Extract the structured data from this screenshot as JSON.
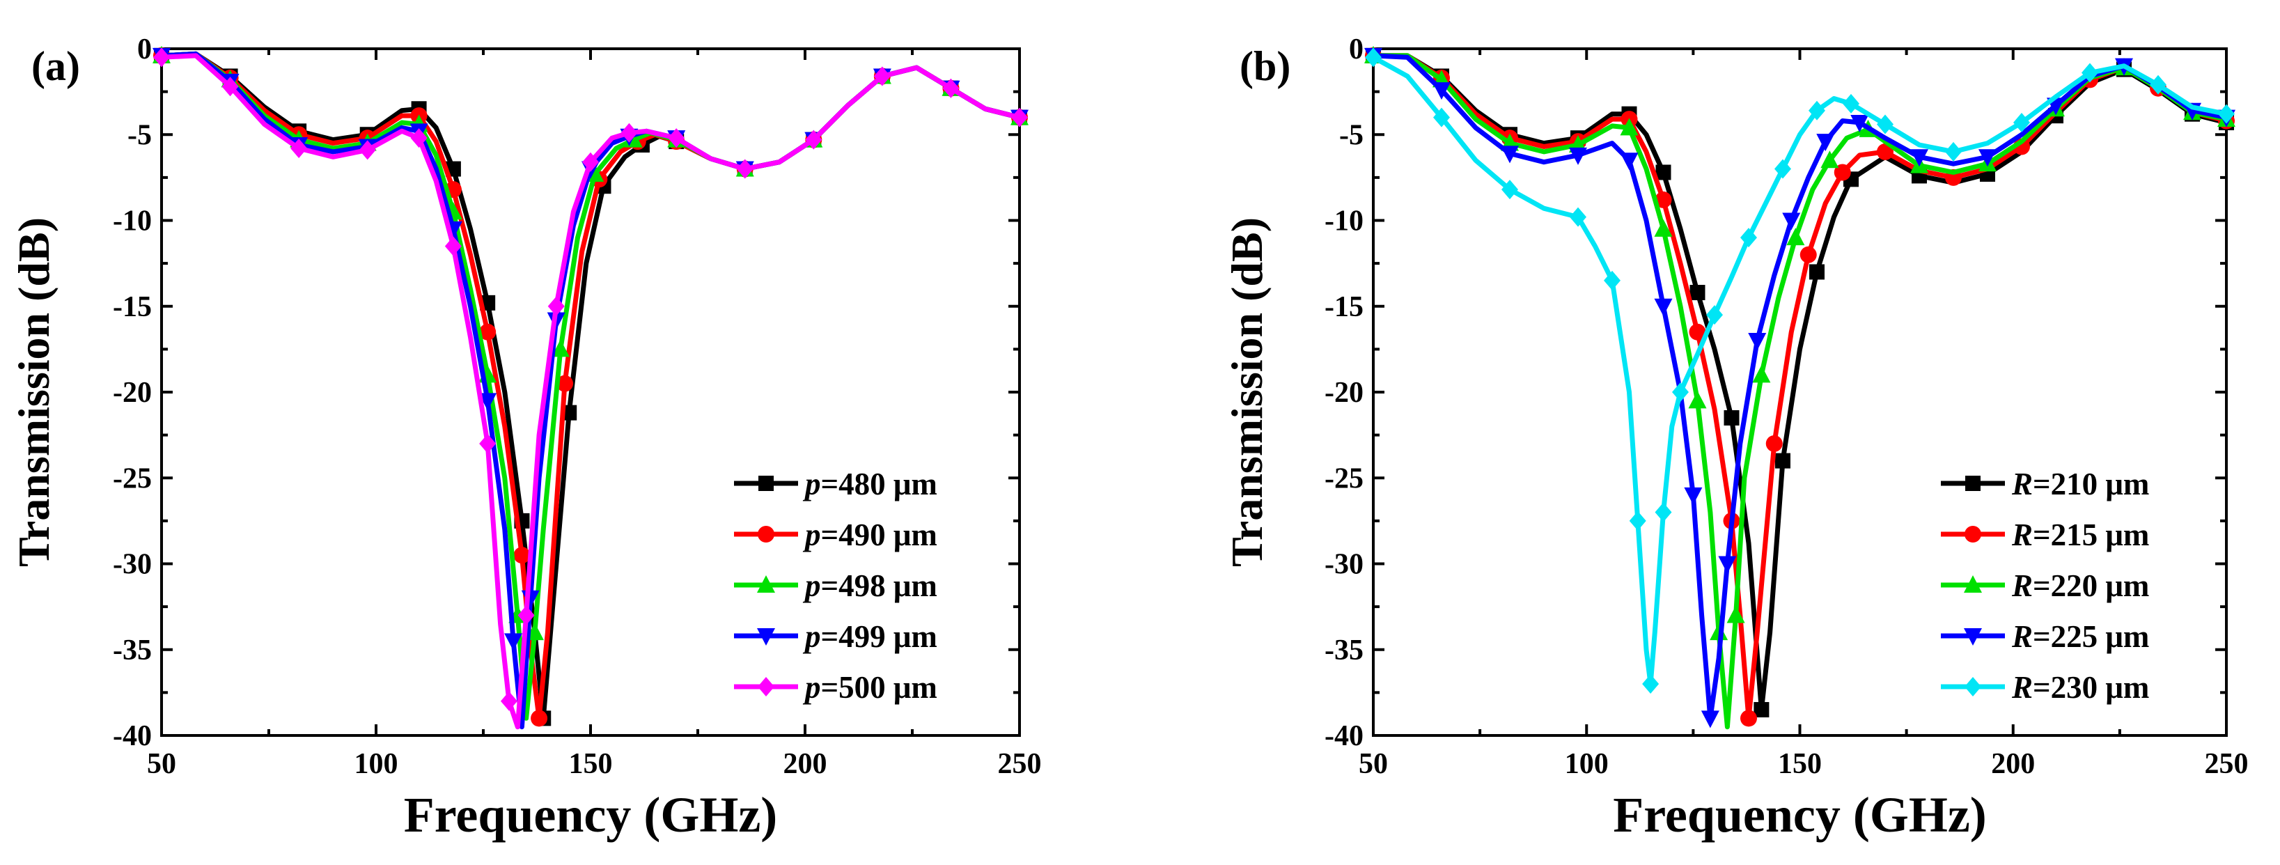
{
  "chart_data": [
    {
      "type": "line",
      "panel_label": "(a)",
      "xlabel": "Frequency (GHz)",
      "ylabel": "Transmission (dB)",
      "xlim": [
        50,
        250
      ],
      "ylim": [
        -40,
        0
      ],
      "xticks": [
        50,
        100,
        150,
        200,
        250
      ],
      "yticks": [
        0,
        -5,
        -10,
        -15,
        -20,
        -25,
        -30,
        -35,
        -40
      ],
      "grid": false,
      "legend_position": "bottom-right",
      "legend_var": "p",
      "legend_unit": "μm",
      "series": [
        {
          "name": "p=480 μm",
          "param": "480",
          "color": "#000000",
          "marker": "square",
          "x": [
            50,
            58,
            66,
            74,
            82,
            90,
            98,
            106,
            110,
            114,
            118,
            122,
            126,
            130,
            134,
            137,
            139,
            141,
            145,
            149,
            153,
            158,
            162,
            166,
            170,
            178,
            186,
            194,
            202,
            210,
            218,
            226,
            234,
            242,
            250
          ],
          "y": [
            -0.4,
            -0.3,
            -1.6,
            -3.4,
            -4.8,
            -5.3,
            -5.0,
            -3.6,
            -3.5,
            -4.6,
            -7.0,
            -10.5,
            -14.8,
            -20.0,
            -27.5,
            -34.0,
            -39.0,
            -33.0,
            -21.2,
            -12.5,
            -8.0,
            -6.3,
            -5.6,
            -5.1,
            -5.4,
            -6.4,
            -7.0,
            -6.6,
            -5.3,
            -3.3,
            -1.6,
            -1.1,
            -2.3,
            -3.5,
            -4.0
          ]
        },
        {
          "name": "p=490 μm",
          "param": "490",
          "color": "#ff0000",
          "marker": "circle",
          "x": [
            50,
            58,
            66,
            74,
            82,
            90,
            98,
            106,
            110,
            114,
            118,
            122,
            126,
            130,
            134,
            136,
            138,
            140,
            144,
            148,
            152,
            157,
            161,
            165,
            170,
            178,
            186,
            194,
            202,
            210,
            218,
            226,
            234,
            242,
            250
          ],
          "y": [
            -0.4,
            -0.3,
            -1.7,
            -3.6,
            -5.0,
            -5.5,
            -5.2,
            -3.9,
            -3.9,
            -5.4,
            -8.2,
            -12.0,
            -16.5,
            -22.0,
            -29.5,
            -35.0,
            -39.0,
            -34.0,
            -19.5,
            -11.8,
            -7.6,
            -6.0,
            -5.4,
            -5.0,
            -5.4,
            -6.4,
            -7.0,
            -6.6,
            -5.3,
            -3.3,
            -1.6,
            -1.1,
            -2.3,
            -3.5,
            -4.0
          ]
        },
        {
          "name": "p=498 μm",
          "param": "498",
          "color": "#00e000",
          "marker": "triangle-up",
          "x": [
            50,
            58,
            66,
            74,
            82,
            90,
            98,
            106,
            110,
            114,
            118,
            122,
            126,
            130,
            133,
            135,
            137,
            139,
            143,
            147,
            151,
            156,
            160,
            164,
            170,
            178,
            186,
            194,
            202,
            210,
            218,
            226,
            234,
            242,
            250
          ],
          "y": [
            -0.4,
            -0.3,
            -1.8,
            -3.9,
            -5.3,
            -5.8,
            -5.5,
            -4.3,
            -4.4,
            -6.2,
            -9.5,
            -14.0,
            -19.0,
            -25.0,
            -33.0,
            -39.0,
            -34.0,
            -28.0,
            -17.5,
            -11.0,
            -7.3,
            -5.8,
            -5.3,
            -4.9,
            -5.3,
            -6.4,
            -7.0,
            -6.6,
            -5.3,
            -3.3,
            -1.6,
            -1.1,
            -2.3,
            -3.5,
            -4.0
          ]
        },
        {
          "name": "p=499 μm",
          "param": "499",
          "color": "#0000ff",
          "marker": "triangle-down",
          "x": [
            50,
            58,
            66,
            74,
            82,
            90,
            98,
            106,
            110,
            114,
            118,
            122,
            126,
            130,
            132,
            134,
            136,
            138,
            142,
            146,
            150,
            155,
            159,
            163,
            170,
            178,
            186,
            194,
            202,
            210,
            218,
            226,
            234,
            242,
            250
          ],
          "y": [
            -0.4,
            -0.3,
            -1.9,
            -4.1,
            -5.6,
            -6.0,
            -5.7,
            -4.6,
            -4.8,
            -7.0,
            -10.5,
            -15.0,
            -20.5,
            -28.0,
            -34.5,
            -39.5,
            -32.0,
            -25.0,
            -15.8,
            -10.3,
            -7.0,
            -5.5,
            -5.1,
            -4.8,
            -5.2,
            -6.4,
            -7.0,
            -6.6,
            -5.3,
            -3.3,
            -1.6,
            -1.1,
            -2.3,
            -3.5,
            -4.0
          ]
        },
        {
          "name": "p=500 μm",
          "param": "500",
          "color": "#ff00ff",
          "marker": "diamond",
          "x": [
            50,
            58,
            66,
            74,
            82,
            90,
            98,
            106,
            110,
            114,
            118,
            122,
            126,
            129,
            131,
            133,
            135,
            138,
            142,
            146,
            150,
            155,
            159,
            163,
            170,
            178,
            186,
            194,
            202,
            210,
            218,
            226,
            234,
            242,
            250
          ],
          "y": [
            -0.5,
            -0.4,
            -2.2,
            -4.4,
            -5.8,
            -6.3,
            -5.9,
            -4.8,
            -5.2,
            -7.7,
            -11.5,
            -16.8,
            -23.0,
            -33.5,
            -38.0,
            -39.5,
            -33.0,
            -22.5,
            -15.0,
            -9.5,
            -6.6,
            -5.2,
            -4.9,
            -4.8,
            -5.2,
            -6.4,
            -7.0,
            -6.6,
            -5.3,
            -3.3,
            -1.6,
            -1.1,
            -2.3,
            -3.5,
            -4.0
          ]
        }
      ]
    },
    {
      "type": "line",
      "panel_label": "(b)",
      "xlabel": "Frequency (GHz)",
      "ylabel": "Transmission (dB)",
      "xlim": [
        50,
        250
      ],
      "ylim": [
        -40,
        0
      ],
      "xticks": [
        50,
        100,
        150,
        200,
        250
      ],
      "yticks": [
        0,
        -5,
        -10,
        -15,
        -20,
        -25,
        -30,
        -35,
        -40
      ],
      "grid": false,
      "legend_position": "bottom-right",
      "legend_var": "R",
      "legend_unit": "μm",
      "series": [
        {
          "name": "R=210 μm",
          "param": "210",
          "color": "#000000",
          "marker": "square",
          "x": [
            50,
            58,
            66,
            74,
            82,
            90,
            98,
            106,
            110,
            114,
            118,
            122,
            126,
            130,
            134,
            138,
            141,
            143,
            146,
            150,
            154,
            158,
            162,
            170,
            178,
            186,
            194,
            202,
            210,
            218,
            226,
            234,
            242,
            250
          ],
          "y": [
            -0.4,
            -0.4,
            -1.6,
            -3.6,
            -5.0,
            -5.5,
            -5.2,
            -3.8,
            -3.8,
            -5.0,
            -7.2,
            -10.5,
            -14.2,
            -17.5,
            -21.5,
            -28.8,
            -38.5,
            -34.0,
            -24.0,
            -17.5,
            -13.0,
            -9.8,
            -7.6,
            -6.3,
            -7.4,
            -7.8,
            -7.3,
            -6.0,
            -3.9,
            -2.0,
            -1.2,
            -2.4,
            -3.8,
            -4.3
          ]
        },
        {
          "name": "R=215 μm",
          "param": "215",
          "color": "#ff0000",
          "marker": "circle",
          "x": [
            50,
            58,
            66,
            74,
            82,
            90,
            98,
            106,
            110,
            114,
            118,
            122,
            126,
            130,
            134,
            136,
            138,
            140,
            144,
            148,
            152,
            156,
            160,
            164,
            170,
            178,
            186,
            194,
            202,
            210,
            218,
            226,
            234,
            242,
            250
          ],
          "y": [
            -0.4,
            -0.4,
            -1.7,
            -3.8,
            -5.2,
            -5.7,
            -5.4,
            -4.1,
            -4.1,
            -6.0,
            -8.8,
            -12.5,
            -16.5,
            -21.0,
            -27.5,
            -33.0,
            -39.0,
            -34.0,
            -23.0,
            -16.5,
            -12.0,
            -9.0,
            -7.2,
            -6.2,
            -6.0,
            -7.1,
            -7.5,
            -7.0,
            -5.7,
            -3.7,
            -1.8,
            -1.1,
            -2.3,
            -3.7,
            -4.2
          ]
        },
        {
          "name": "R=220 μm",
          "param": "220",
          "color": "#00e000",
          "marker": "triangle-up",
          "x": [
            50,
            58,
            66,
            74,
            82,
            90,
            98,
            106,
            110,
            114,
            118,
            122,
            126,
            129,
            131,
            133,
            135,
            137,
            141,
            145,
            149,
            153,
            157,
            161,
            166,
            170,
            178,
            186,
            194,
            202,
            210,
            218,
            226,
            234,
            242,
            250
          ],
          "y": [
            -0.4,
            -0.4,
            -1.8,
            -4.1,
            -5.5,
            -6.0,
            -5.6,
            -4.5,
            -4.6,
            -7.0,
            -10.5,
            -15.0,
            -20.5,
            -27.0,
            -34.0,
            -39.5,
            -33.0,
            -25.0,
            -19.0,
            -14.5,
            -11.0,
            -8.2,
            -6.5,
            -5.2,
            -4.7,
            -5.4,
            -6.8,
            -7.2,
            -6.7,
            -5.4,
            -3.5,
            -1.7,
            -1.1,
            -2.3,
            -3.7,
            -4.1
          ]
        },
        {
          "name": "R=225 μm",
          "param": "225",
          "color": "#0000ff",
          "marker": "triangle-down",
          "x": [
            50,
            58,
            66,
            74,
            82,
            90,
            98,
            106,
            110,
            114,
            118,
            122,
            125,
            127,
            129,
            131,
            133,
            136,
            140,
            144,
            148,
            152,
            156,
            160,
            164,
            170,
            178,
            186,
            194,
            202,
            210,
            218,
            226,
            234,
            242,
            250
          ],
          "y": [
            -0.4,
            -0.5,
            -2.4,
            -4.6,
            -6.1,
            -6.6,
            -6.2,
            -5.5,
            -6.5,
            -10.0,
            -15.0,
            -20.0,
            -26.0,
            -33.0,
            -39.0,
            -35.5,
            -30.0,
            -23.0,
            -17.0,
            -13.2,
            -10.0,
            -7.5,
            -5.4,
            -4.2,
            -4.3,
            -5.2,
            -6.3,
            -6.7,
            -6.3,
            -5.0,
            -3.3,
            -1.6,
            -1.0,
            -2.2,
            -3.6,
            -4.0
          ]
        },
        {
          "name": "R=230 μm",
          "param": "230",
          "color": "#00e5f5",
          "marker": "diamond",
          "x": [
            50,
            58,
            66,
            74,
            82,
            90,
            98,
            102,
            106,
            110,
            112,
            114,
            115,
            116,
            118,
            120,
            122,
            126,
            130,
            134,
            138,
            142,
            146,
            150,
            154,
            158,
            162,
            166,
            170,
            178,
            186,
            194,
            202,
            210,
            218,
            226,
            234,
            242,
            250
          ],
          "y": [
            -0.5,
            -1.6,
            -4.0,
            -6.5,
            -8.2,
            -9.3,
            -9.8,
            -11.5,
            -13.5,
            -20.0,
            -27.5,
            -35.0,
            -37.0,
            -34.0,
            -27.0,
            -22.0,
            -20.0,
            -17.8,
            -15.5,
            -13.3,
            -11.0,
            -9.0,
            -7.0,
            -5.0,
            -3.6,
            -2.9,
            -3.2,
            -3.8,
            -4.4,
            -5.6,
            -6.0,
            -5.5,
            -4.3,
            -2.8,
            -1.4,
            -1.0,
            -2.1,
            -3.4,
            -3.8
          ]
        }
      ]
    }
  ]
}
